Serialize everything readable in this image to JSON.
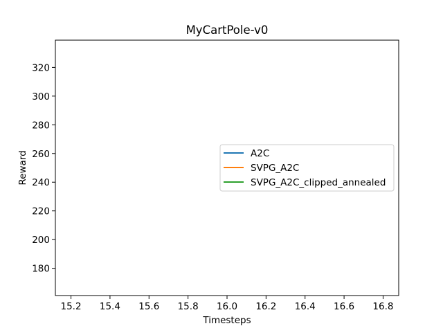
{
  "chart_data": {
    "type": "line",
    "title": "MyCartPole-v0",
    "xlabel": "Timesteps",
    "ylabel": "Reward",
    "xlim": [
      15.12,
      16.88
    ],
    "ylim": [
      161,
      339
    ],
    "xticks": [
      "15.2",
      "15.4",
      "15.6",
      "15.8",
      "16.0",
      "16.2",
      "16.4",
      "16.6",
      "16.8"
    ],
    "yticks": [
      "180",
      "200",
      "220",
      "240",
      "260",
      "280",
      "300",
      "320"
    ],
    "grid": false,
    "legend_position": "center-right",
    "series": [
      {
        "name": "A2C",
        "color": "#1f77b4",
        "x": [],
        "y": []
      },
      {
        "name": "SVPG_A2C",
        "color": "#ff7f0e",
        "x": [],
        "y": []
      },
      {
        "name": "SVPG_A2C_clipped_annealed",
        "color": "#2ca02c",
        "x": [],
        "y": []
      }
    ]
  }
}
